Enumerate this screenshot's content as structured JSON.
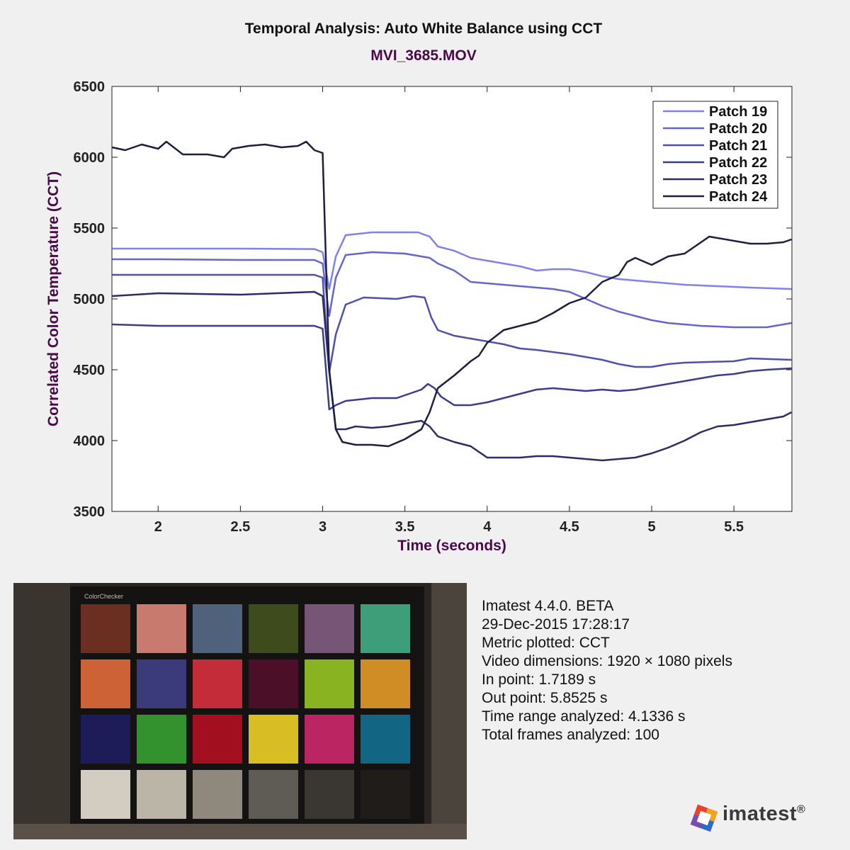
{
  "chart_data": {
    "type": "line",
    "title": "Temporal Analysis: Auto White Balance using CCT",
    "subtitle": "MVI_3685.MOV",
    "xlabel": "Time (seconds)",
    "ylabel": "Correlated Color Temperature (CCT)",
    "xlim": [
      1.7189,
      5.8525
    ],
    "ylim": [
      3500,
      6500
    ],
    "xticks": [
      2,
      2.5,
      3,
      3.5,
      4,
      4.5,
      5,
      5.5
    ],
    "xtick_labels": [
      "2",
      "2.5",
      "3",
      "3.5",
      "4",
      "4.5",
      "5",
      "5.5"
    ],
    "yticks": [
      3500,
      4000,
      4500,
      5000,
      5500,
      6000,
      6500
    ],
    "ytick_labels": [
      "3500",
      "4000",
      "4500",
      "5000",
      "5500",
      "6000",
      "6500"
    ],
    "grid": false,
    "legend_position": "top-right",
    "series": [
      {
        "name": "Patch 19",
        "color": "#8080ee",
        "points": [
          [
            1.72,
            5355
          ],
          [
            2.0,
            5355
          ],
          [
            2.5,
            5355
          ],
          [
            2.95,
            5352
          ],
          [
            3.0,
            5330
          ],
          [
            3.04,
            5070
          ],
          [
            3.08,
            5300
          ],
          [
            3.14,
            5450
          ],
          [
            3.3,
            5470
          ],
          [
            3.5,
            5470
          ],
          [
            3.58,
            5470
          ],
          [
            3.65,
            5440
          ],
          [
            3.7,
            5370
          ],
          [
            3.8,
            5340
          ],
          [
            3.9,
            5290
          ],
          [
            4.0,
            5270
          ],
          [
            4.1,
            5250
          ],
          [
            4.2,
            5230
          ],
          [
            4.3,
            5200
          ],
          [
            4.4,
            5210
          ],
          [
            4.5,
            5210
          ],
          [
            4.6,
            5190
          ],
          [
            4.7,
            5160
          ],
          [
            4.8,
            5140
          ],
          [
            4.9,
            5130
          ],
          [
            5.0,
            5120
          ],
          [
            5.1,
            5110
          ],
          [
            5.2,
            5100
          ],
          [
            5.4,
            5090
          ],
          [
            5.6,
            5080
          ],
          [
            5.85,
            5070
          ]
        ]
      },
      {
        "name": "Patch 20",
        "color": "#6565d0",
        "points": [
          [
            1.72,
            5280
          ],
          [
            2.0,
            5280
          ],
          [
            2.5,
            5275
          ],
          [
            2.95,
            5275
          ],
          [
            3.0,
            5250
          ],
          [
            3.04,
            4880
          ],
          [
            3.08,
            5150
          ],
          [
            3.14,
            5310
          ],
          [
            3.3,
            5330
          ],
          [
            3.5,
            5320
          ],
          [
            3.65,
            5290
          ],
          [
            3.7,
            5250
          ],
          [
            3.8,
            5200
          ],
          [
            3.9,
            5120
          ],
          [
            4.0,
            5110
          ],
          [
            4.2,
            5090
          ],
          [
            4.4,
            5070
          ],
          [
            4.5,
            5050
          ],
          [
            4.6,
            5000
          ],
          [
            4.7,
            4950
          ],
          [
            4.8,
            4910
          ],
          [
            4.9,
            4880
          ],
          [
            5.0,
            4850
          ],
          [
            5.1,
            4830
          ],
          [
            5.3,
            4810
          ],
          [
            5.5,
            4800
          ],
          [
            5.7,
            4800
          ],
          [
            5.85,
            4830
          ]
        ]
      },
      {
        "name": "Patch 21",
        "color": "#4f4fb0",
        "points": [
          [
            1.72,
            5170
          ],
          [
            2.0,
            5170
          ],
          [
            2.5,
            5170
          ],
          [
            2.95,
            5170
          ],
          [
            3.0,
            5150
          ],
          [
            3.04,
            4480
          ],
          [
            3.08,
            4750
          ],
          [
            3.14,
            4960
          ],
          [
            3.25,
            5010
          ],
          [
            3.45,
            5000
          ],
          [
            3.55,
            5020
          ],
          [
            3.62,
            5010
          ],
          [
            3.66,
            4870
          ],
          [
            3.7,
            4780
          ],
          [
            3.8,
            4740
          ],
          [
            3.9,
            4720
          ],
          [
            4.0,
            4700
          ],
          [
            4.1,
            4680
          ],
          [
            4.2,
            4650
          ],
          [
            4.3,
            4640
          ],
          [
            4.5,
            4610
          ],
          [
            4.6,
            4590
          ],
          [
            4.7,
            4570
          ],
          [
            4.8,
            4540
          ],
          [
            4.9,
            4520
          ],
          [
            5.0,
            4520
          ],
          [
            5.1,
            4540
          ],
          [
            5.2,
            4550
          ],
          [
            5.5,
            4560
          ],
          [
            5.6,
            4580
          ],
          [
            5.85,
            4570
          ]
        ]
      },
      {
        "name": "Patch 22",
        "color": "#3c3c8c",
        "points": [
          [
            1.72,
            4820
          ],
          [
            2.0,
            4810
          ],
          [
            2.5,
            4810
          ],
          [
            2.95,
            4810
          ],
          [
            3.0,
            4790
          ],
          [
            3.04,
            4220
          ],
          [
            3.08,
            4250
          ],
          [
            3.14,
            4280
          ],
          [
            3.3,
            4300
          ],
          [
            3.45,
            4300
          ],
          [
            3.55,
            4340
          ],
          [
            3.6,
            4360
          ],
          [
            3.64,
            4400
          ],
          [
            3.68,
            4370
          ],
          [
            3.72,
            4310
          ],
          [
            3.8,
            4250
          ],
          [
            3.9,
            4250
          ],
          [
            4.0,
            4270
          ],
          [
            4.1,
            4300
          ],
          [
            4.2,
            4330
          ],
          [
            4.3,
            4360
          ],
          [
            4.4,
            4370
          ],
          [
            4.5,
            4360
          ],
          [
            4.6,
            4350
          ],
          [
            4.7,
            4360
          ],
          [
            4.8,
            4350
          ],
          [
            4.9,
            4360
          ],
          [
            5.0,
            4380
          ],
          [
            5.1,
            4400
          ],
          [
            5.2,
            4420
          ],
          [
            5.3,
            4440
          ],
          [
            5.4,
            4460
          ],
          [
            5.5,
            4470
          ],
          [
            5.6,
            4490
          ],
          [
            5.7,
            4500
          ],
          [
            5.85,
            4510
          ]
        ]
      },
      {
        "name": "Patch 23",
        "color": "#2c2c66",
        "points": [
          [
            1.72,
            5020
          ],
          [
            2.0,
            5040
          ],
          [
            2.5,
            5030
          ],
          [
            2.95,
            5050
          ],
          [
            3.0,
            5020
          ],
          [
            3.04,
            4490
          ],
          [
            3.08,
            4080
          ],
          [
            3.14,
            4080
          ],
          [
            3.2,
            4100
          ],
          [
            3.3,
            4090
          ],
          [
            3.4,
            4100
          ],
          [
            3.5,
            4120
          ],
          [
            3.6,
            4140
          ],
          [
            3.65,
            4100
          ],
          [
            3.7,
            4030
          ],
          [
            3.8,
            3990
          ],
          [
            3.9,
            3960
          ],
          [
            4.0,
            3880
          ],
          [
            4.1,
            3880
          ],
          [
            4.2,
            3880
          ],
          [
            4.3,
            3890
          ],
          [
            4.4,
            3890
          ],
          [
            4.5,
            3880
          ],
          [
            4.6,
            3870
          ],
          [
            4.7,
            3860
          ],
          [
            4.8,
            3870
          ],
          [
            4.9,
            3880
          ],
          [
            5.0,
            3910
          ],
          [
            5.1,
            3950
          ],
          [
            5.2,
            4000
          ],
          [
            5.3,
            4060
          ],
          [
            5.4,
            4100
          ],
          [
            5.5,
            4110
          ],
          [
            5.6,
            4130
          ],
          [
            5.7,
            4150
          ],
          [
            5.8,
            4170
          ],
          [
            5.85,
            4200
          ]
        ]
      },
      {
        "name": "Patch 24",
        "color": "#1e1e40",
        "points": [
          [
            1.72,
            6070
          ],
          [
            1.8,
            6050
          ],
          [
            1.9,
            6090
          ],
          [
            2.0,
            6060
          ],
          [
            2.05,
            6110
          ],
          [
            2.15,
            6020
          ],
          [
            2.3,
            6020
          ],
          [
            2.4,
            6000
          ],
          [
            2.45,
            6060
          ],
          [
            2.55,
            6080
          ],
          [
            2.65,
            6090
          ],
          [
            2.75,
            6070
          ],
          [
            2.85,
            6080
          ],
          [
            2.9,
            6110
          ],
          [
            2.95,
            6050
          ],
          [
            3.0,
            6030
          ],
          [
            3.04,
            4500
          ],
          [
            3.08,
            4080
          ],
          [
            3.12,
            3990
          ],
          [
            3.2,
            3970
          ],
          [
            3.3,
            3970
          ],
          [
            3.4,
            3960
          ],
          [
            3.5,
            4010
          ],
          [
            3.6,
            4080
          ],
          [
            3.65,
            4200
          ],
          [
            3.7,
            4370
          ],
          [
            3.8,
            4460
          ],
          [
            3.9,
            4560
          ],
          [
            3.95,
            4600
          ],
          [
            4.0,
            4690
          ],
          [
            4.1,
            4780
          ],
          [
            4.2,
            4810
          ],
          [
            4.3,
            4840
          ],
          [
            4.4,
            4900
          ],
          [
            4.5,
            4970
          ],
          [
            4.6,
            5010
          ],
          [
            4.7,
            5120
          ],
          [
            4.8,
            5170
          ],
          [
            4.85,
            5260
          ],
          [
            4.9,
            5290
          ],
          [
            5.0,
            5240
          ],
          [
            5.1,
            5300
          ],
          [
            5.2,
            5320
          ],
          [
            5.3,
            5400
          ],
          [
            5.35,
            5440
          ],
          [
            5.5,
            5410
          ],
          [
            5.6,
            5390
          ],
          [
            5.7,
            5390
          ],
          [
            5.8,
            5400
          ],
          [
            5.85,
            5420
          ]
        ]
      }
    ]
  },
  "info": {
    "lines": [
      "Imatest 4.4.0. BETA",
      "29-Dec-2015 17:28:17",
      "Metric plotted: CCT",
      "Video dimensions: 1920 × 1080 pixels",
      "In point: 1.7189 s",
      "Out point: 5.8525 s",
      "Time range analyzed: 4.1336 s",
      "Total frames analyzed: 100"
    ]
  },
  "photo": {
    "chart_label": "ColorChecker",
    "patch_colors": [
      [
        "#6b2f22",
        "#c97a6f",
        "#50617b",
        "#3d4b1d",
        "#775577",
        "#3f9e7a"
      ],
      [
        "#cd6236",
        "#3b3a7a",
        "#c42c39",
        "#4b1028",
        "#8ab322",
        "#d18d25"
      ],
      [
        "#1d1c58",
        "#33922e",
        "#a20f1e",
        "#d8be24",
        "#bb2662",
        "#136683"
      ],
      [
        "#d3ccc0",
        "#bbb5a7",
        "#8e887d",
        "#5f5b55",
        "#3a3632",
        "#1f1c1a"
      ]
    ]
  },
  "logo": {
    "text": "imatest",
    "mark": "®"
  }
}
